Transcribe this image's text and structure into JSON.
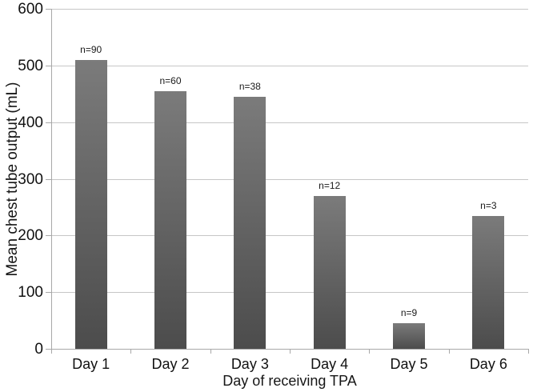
{
  "chart_data": {
    "type": "bar",
    "title": "",
    "xlabel": "Day of receiving TPA",
    "ylabel": "Mean chest tube output (mL)",
    "categories": [
      "Day 1",
      "Day 2",
      "Day 3",
      "Day 4",
      "Day 5",
      "Day 6"
    ],
    "values": [
      510,
      455,
      445,
      270,
      45,
      235
    ],
    "bar_labels": [
      "n=90",
      "n=60",
      "n=38",
      "n=12",
      "n=9",
      "n=3"
    ],
    "ylim": [
      0,
      600
    ],
    "yticks": [
      0,
      100,
      200,
      300,
      400,
      500,
      600
    ],
    "grid": "horizontal",
    "legend": "none",
    "colors": {
      "bar_gradient_top": "#7b7b7b",
      "bar_gradient_bottom": "#4c4c4c",
      "gridline": "#c6c6c6",
      "axis": "#a8a8a8",
      "text": "#111111",
      "background": "#ffffff"
    }
  }
}
